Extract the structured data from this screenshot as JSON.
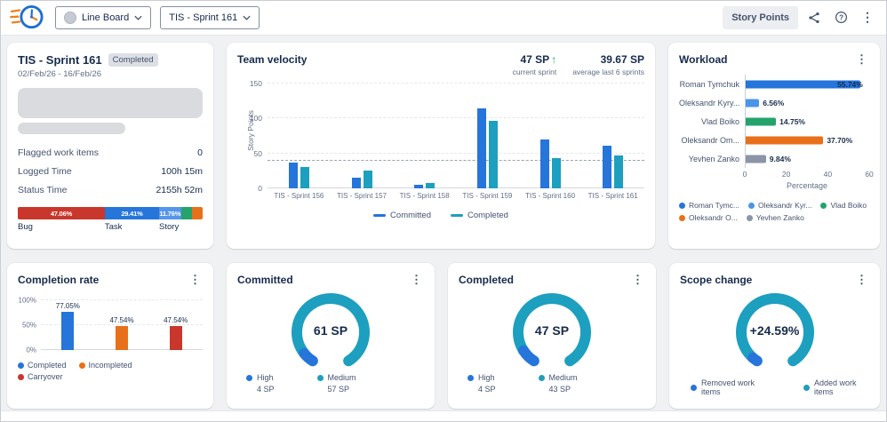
{
  "topbar": {
    "board_dropdown": "Line Board",
    "sprint_dropdown": "TIS - Sprint 161",
    "story_points_button": "Story Points"
  },
  "cards": {
    "sprint": {
      "title": "TIS - Sprint 161",
      "badge": "Completed",
      "date_range": "02/Feb/26 - 16/Feb/26",
      "stats": [
        {
          "label": "Flagged work items",
          "value": "0"
        },
        {
          "label": "Logged Time",
          "value": "100h 15m"
        },
        {
          "label": "Status Time",
          "value": "2155h 52m"
        }
      ]
    },
    "velocity": {
      "title": "Team velocity",
      "current_value": "47 SP",
      "current_arrow": "↑",
      "current_caption": "current sprint",
      "average_value": "39.67 SP",
      "average_caption": "average last 6 sprints"
    },
    "workload": {
      "title": "Workload"
    },
    "completion": {
      "title": "Completion rate"
    },
    "committed": {
      "title": "Committed"
    },
    "completed": {
      "title": "Completed"
    },
    "scope": {
      "title": "Scope change"
    }
  },
  "chart_data": [
    {
      "id": "velocity",
      "type": "bar",
      "title": "Team velocity",
      "categories": [
        "TIS - Sprint 156",
        "TIS - Sprint 157",
        "TIS - Sprint 158",
        "TIS - Sprint 159",
        "TIS - Sprint 160",
        "TIS - Sprint 161"
      ],
      "series": [
        {
          "name": "Committed",
          "color": "#2575db",
          "values": [
            37,
            15,
            5,
            115,
            70,
            61
          ]
        },
        {
          "name": "Completed",
          "color": "#1d9fbf",
          "values": [
            30,
            25,
            8,
            97,
            43,
            47
          ]
        }
      ],
      "ylabel": "Story Points",
      "ylim": [
        0,
        150
      ],
      "yticks": [
        0,
        50,
        100,
        150
      ],
      "average_line": 39.67,
      "legend_position": "bottom"
    },
    {
      "id": "workload",
      "type": "bar-horizontal",
      "title": "Workload",
      "categories": [
        "Roman Tymchuk",
        "Oleksandr Kyry...",
        "Vlad Boiko",
        "Oleksandr Om...",
        "Yevhen Zanko"
      ],
      "values": [
        55.74,
        6.56,
        14.75,
        37.7,
        9.84
      ],
      "value_labels": [
        "55.74%",
        "6.56%",
        "14.75%",
        "37.70%",
        "9.84%"
      ],
      "colors": [
        "#2575db",
        "#4a94ea",
        "#24a46c",
        "#e8701a",
        "#8b95a7"
      ],
      "xlabel": "Percentage",
      "xlim": [
        0,
        60
      ],
      "xticks": [
        0,
        20,
        40,
        60
      ],
      "legend": [
        "Roman Tymc...",
        "Oleksandr Kyr...",
        "Vlad Boiko",
        "Oleksandr O...",
        "Yevhen Zanko"
      ]
    },
    {
      "id": "completion",
      "type": "bar",
      "title": "Completion rate",
      "categories": [
        "Completed",
        "Incompleted",
        "Carryover"
      ],
      "values": [
        77.05,
        47.54,
        47.54
      ],
      "value_labels": [
        "77.05%",
        "47.54%",
        "47.54%"
      ],
      "colors": [
        "#2575db",
        "#e8701a",
        "#c9372c"
      ],
      "ylim": [
        0,
        100
      ],
      "ytick_labels": [
        "0%",
        "50%",
        "100%"
      ]
    },
    {
      "id": "issue-types",
      "type": "stacked-bar",
      "segments": [
        {
          "label": "Bug",
          "pct": 47.06,
          "pct_label": "47.06%",
          "color": "#c9372c"
        },
        {
          "label": "Task",
          "pct": 29.41,
          "pct_label": "29.41%",
          "color": "#2575db"
        },
        {
          "label": "Story",
          "pct": 11.76,
          "pct_label": "11.76%",
          "color": "#5596ea"
        },
        {
          "label": "",
          "pct": 5.88,
          "pct_label": "",
          "color": "#24a46c"
        },
        {
          "label": "",
          "pct": 5.89,
          "pct_label": "",
          "color": "#e8701a"
        }
      ]
    },
    {
      "id": "committed-gauge",
      "type": "gauge",
      "title": "Committed",
      "center_text": "61 SP",
      "segments": [
        {
          "label": "High",
          "value": "4 SP",
          "arc_weight": 4,
          "color": "#2575db"
        },
        {
          "label": "Medium",
          "value": "57 SP",
          "arc_weight": 57,
          "color": "#1d9fbf"
        }
      ]
    },
    {
      "id": "completed-gauge",
      "type": "gauge",
      "title": "Completed",
      "center_text": "47 SP",
      "segments": [
        {
          "label": "High",
          "value": "4 SP",
          "arc_weight": 4,
          "color": "#2575db"
        },
        {
          "label": "Medium",
          "value": "43 SP",
          "arc_weight": 43,
          "color": "#1d9fbf"
        }
      ]
    },
    {
      "id": "scope-gauge",
      "type": "gauge",
      "title": "Scope change",
      "center_text": "+24.59%",
      "segments": [
        {
          "label": "Removed work items",
          "arc_weight": 3,
          "color": "#2575db"
        },
        {
          "label": "Added work items",
          "arc_weight": 97,
          "color": "#1d9fbf"
        }
      ]
    }
  ]
}
